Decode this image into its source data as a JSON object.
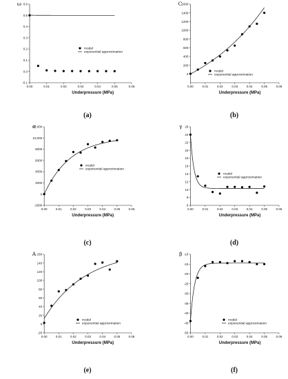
{
  "chart_data": [
    {
      "type": "scatter",
      "panel_label": "(a)",
      "ylabel": "ω",
      "xlabel": "Underpressure (MPa)",
      "xlim": [
        0,
        0.06
      ],
      "ylim": [
        -0.1,
        0.6
      ],
      "xticks": [
        0.0,
        0.01,
        0.02,
        0.03,
        0.04,
        0.05,
        0.06
      ],
      "xtick_labels": [
        "0.00",
        "0.01",
        "0.02",
        "0.03",
        "0.04",
        "0.05",
        "0.06"
      ],
      "yticks": [
        -0.1,
        0.0,
        0.1,
        0.2,
        0.3,
        0.4,
        0.5,
        0.6
      ],
      "ytick_labels": [
        "-0.1",
        "0.0",
        "0.1",
        "0.2",
        "0.3",
        "0.4",
        "0.5",
        "0.6"
      ],
      "legend": {
        "placement": "center-right",
        "model": "model",
        "fit": "exponential approximation"
      },
      "series": [
        {
          "name": "model",
          "x": [
            0.0,
            0.005,
            0.01,
            0.015,
            0.02,
            0.025,
            0.03,
            0.035,
            0.04,
            0.045,
            0.05
          ],
          "y": [
            0.5,
            0.05,
            0.01,
            0.005,
            0.004,
            0.004,
            0.003,
            0.003,
            0.003,
            0.003,
            0.003
          ]
        },
        {
          "name": "exponential approximation",
          "fit": {
            "a": 0.5,
            "b": 0.0025,
            "c": -500
          }
        }
      ]
    },
    {
      "type": "scatter",
      "panel_label": "(b)",
      "ylabel": "C",
      "xlabel": "Underpressure (MPa)",
      "xlim": [
        -0.01,
        0.06
      ],
      "ylim": [
        -200,
        1600
      ],
      "xticks": [
        0.0,
        0.01,
        0.02,
        0.03,
        0.04,
        0.05,
        0.06
      ],
      "xtick_labels": [
        "0.00",
        "0.01",
        "0.02",
        "0.03",
        "0.04",
        "0.05",
        "0.06"
      ],
      "yticks": [
        0,
        200,
        400,
        600,
        800,
        1000,
        1200,
        1400,
        1600
      ],
      "ytick_labels": [
        "0",
        "200",
        "400",
        "600",
        "800",
        "1000",
        "1200",
        "1400",
        "1600"
      ],
      "legend": {
        "placement": "lower-right",
        "model": "model",
        "fit": "exponential approximation"
      },
      "series": [
        {
          "name": "model",
          "x": [
            0.0,
            0.005,
            0.01,
            0.015,
            0.02,
            0.025,
            0.03,
            0.035,
            0.04,
            0.045,
            0.05
          ],
          "y": [
            5,
            100,
            250,
            310,
            400,
            540,
            650,
            910,
            1090,
            1150,
            1400
          ]
        },
        {
          "name": "exponential approximation",
          "fit": {
            "a": -920,
            "b": 920,
            "c": 19.5
          }
        }
      ]
    },
    {
      "type": "scatter",
      "panel_label": "(c)",
      "ylabel": "σ",
      "xlabel": "Underpressure (MPa)",
      "xlim": [
        -0.01,
        0.06
      ],
      "ylim": [
        -2000,
        12000
      ],
      "xticks": [
        0.0,
        0.01,
        0.02,
        0.03,
        0.04,
        0.05,
        0.06
      ],
      "xtick_labels": [
        "0.00",
        "0.01",
        "0.02",
        "0.03",
        "0.04",
        "0.05",
        "0.06"
      ],
      "yticks": [
        -2000,
        0,
        2000,
        4000,
        6000,
        8000,
        10000,
        12000
      ],
      "ytick_labels": [
        "-2000",
        "0",
        "2000",
        "4000",
        "6000",
        "8000",
        "10,000",
        "12,000"
      ],
      "legend": {
        "placement": "center",
        "model": "model",
        "fit": "exponential approximation"
      },
      "series": [
        {
          "name": "model",
          "x": [
            0.0,
            0.005,
            0.01,
            0.015,
            0.02,
            0.025,
            0.03,
            0.035,
            0.04,
            0.045,
            0.05
          ],
          "y": [
            0,
            2400,
            4300,
            5900,
            7500,
            7400,
            8900,
            8300,
            9300,
            9500,
            9600
          ]
        },
        {
          "name": "exponential approximation",
          "fit": {
            "a": 10200,
            "b": -10200,
            "c": -55
          }
        }
      ]
    },
    {
      "type": "scatter",
      "panel_label": "(d)",
      "ylabel": "γ",
      "xlabel": "Underpressure (MPa)",
      "xlim": [
        -0.01,
        0.06
      ],
      "ylim": [
        6,
        26
      ],
      "xticks": [
        0.0,
        0.01,
        0.02,
        0.03,
        0.04,
        0.05,
        0.06
      ],
      "xtick_labels": [
        "0.00",
        "0.01",
        "0.02",
        "0.03",
        "0.04",
        "0.05",
        "0.06"
      ],
      "yticks": [
        6,
        8,
        10,
        12,
        14,
        16,
        18,
        20,
        22,
        24,
        26
      ],
      "ytick_labels": [
        "6",
        "8",
        "10",
        "12",
        "14",
        "16",
        "18",
        "20",
        "22",
        "24",
        "26"
      ],
      "legend": {
        "placement": "center-right",
        "model": "model",
        "fit": "exponential approximation"
      },
      "series": [
        {
          "name": "model",
          "x": [
            0.0,
            0.005,
            0.01,
            0.015,
            0.02,
            0.025,
            0.03,
            0.035,
            0.04,
            0.045,
            0.05
          ],
          "y": [
            24.0,
            13.4,
            11.0,
            9.4,
            9.0,
            10.7,
            10.7,
            10.6,
            10.7,
            9.2,
            10.8
          ]
        },
        {
          "name": "exponential approximation",
          "fit": {
            "a": 10.3,
            "b": 13.7,
            "c": -420
          }
        }
      ]
    },
    {
      "type": "scatter",
      "panel_label": "(e)",
      "ylabel": "A",
      "xlabel": "Underpressure (MPa)",
      "xlim": [
        -0.01,
        0.06
      ],
      "ylim": [
        -20,
        160
      ],
      "xticks": [
        0.0,
        0.01,
        0.02,
        0.03,
        0.04,
        0.05,
        0.06
      ],
      "xtick_labels": [
        "0.00",
        "0.01",
        "0.02",
        "0.03",
        "0.04",
        "0.05",
        "0.06"
      ],
      "yticks": [
        -20,
        0,
        20,
        40,
        60,
        80,
        100,
        120,
        140,
        160
      ],
      "ytick_labels": [
        "-20",
        "0",
        "20",
        "40",
        "60",
        "80",
        "100",
        "120",
        "140",
        "160"
      ],
      "legend": {
        "placement": "lower-center",
        "model": "model",
        "fit": "exponential approximation"
      },
      "series": [
        {
          "name": "model",
          "x": [
            0.0,
            0.005,
            0.01,
            0.015,
            0.02,
            0.025,
            0.03,
            0.035,
            0.04,
            0.045,
            0.05
          ],
          "y": [
            3,
            42,
            75,
            78,
            91,
            104,
            111,
            138,
            141,
            125,
            144
          ]
        },
        {
          "name": "exponential approximation",
          "fit": {
            "a": 168,
            "b": -155,
            "c": -35
          }
        }
      ]
    },
    {
      "type": "scatter",
      "panel_label": "(f)",
      "ylabel": "β",
      "xlabel": "Underpressure (MPa)",
      "xlim": [
        -0.01,
        0.06
      ],
      "ylim": [
        -50,
        -10
      ],
      "xticks": [
        0.0,
        0.01,
        0.02,
        0.03,
        0.04,
        0.05,
        0.06
      ],
      "xtick_labels": [
        "0.00",
        "0.01",
        "0.02",
        "0.03",
        "0.04",
        "0.05",
        "0.06"
      ],
      "yticks": [
        -50,
        -45,
        -40,
        -35,
        -30,
        -25,
        -20,
        -15,
        -10
      ],
      "ytick_labels": [
        "-50",
        "-45",
        "-40",
        "-35",
        "-30",
        "-25",
        "-20",
        "-15",
        "-10"
      ],
      "legend": {
        "placement": "lower-right",
        "model": "model",
        "fit": "exponential approximation"
      },
      "series": [
        {
          "name": "model",
          "x": [
            0.0,
            0.005,
            0.01,
            0.015,
            0.02,
            0.025,
            0.03,
            0.035,
            0.04,
            0.045,
            0.05
          ],
          "y": [
            -44,
            -22,
            -16,
            -14,
            -14,
            -14.5,
            -13.5,
            -13.5,
            -14,
            -15,
            -15
          ]
        },
        {
          "name": "exponential approximation",
          "fit": {
            "a": -14.5,
            "b": -29.5,
            "c": -350
          }
        }
      ]
    }
  ]
}
